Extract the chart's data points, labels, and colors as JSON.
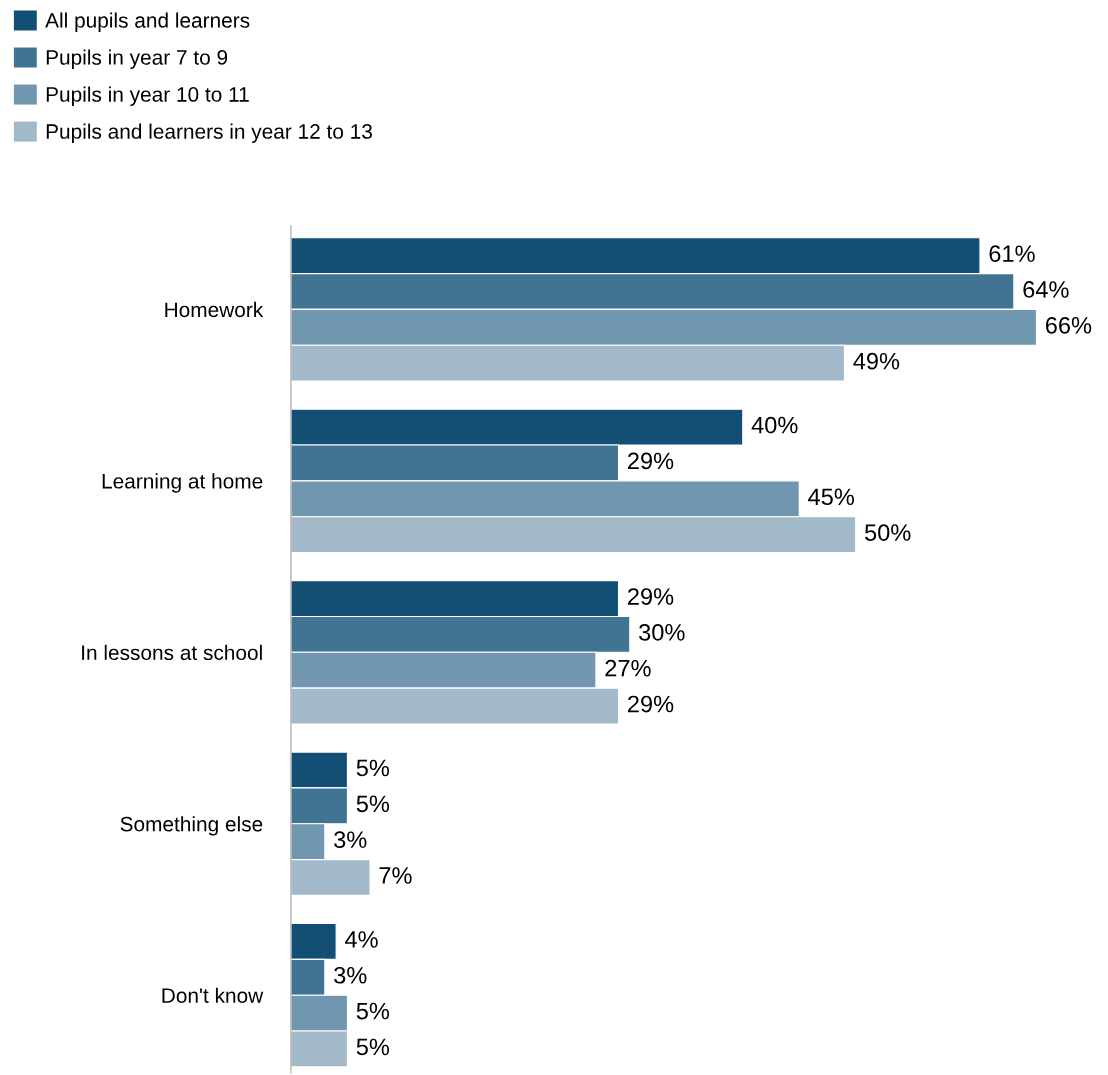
{
  "chart_data": {
    "type": "bar",
    "orientation": "horizontal",
    "legend": "top left",
    "grid": false,
    "categories": [
      "Homework",
      "Learning at home",
      "In lessons at school",
      "Something else",
      "Don't know"
    ],
    "series": [
      {
        "name": "All pupils and learners",
        "color": "#134f75",
        "values": [
          61,
          40,
          29,
          5,
          4
        ],
        "value_labels": [
          "61%",
          "40%",
          "29%",
          "5%",
          "4%"
        ]
      },
      {
        "name": "Pupils in year 7 to 9",
        "color": "#417493",
        "values": [
          64,
          29,
          30,
          5,
          3
        ],
        "value_labels": [
          "64%",
          "29%",
          "30%",
          "5%",
          "3%"
        ]
      },
      {
        "name": "Pupils in year 10 to 11",
        "color": "#7096b0",
        "values": [
          66,
          45,
          27,
          3,
          5
        ],
        "value_labels": [
          "66%",
          "45%",
          "27%",
          "3%",
          "5%"
        ]
      },
      {
        "name": "Pupils and learners in year 12 to 13",
        "color": "#a2b9c9",
        "values": [
          49,
          50,
          29,
          7,
          5
        ],
        "value_labels": [
          "49%",
          "50%",
          "29%",
          "7%",
          "5%"
        ]
      }
    ]
  }
}
